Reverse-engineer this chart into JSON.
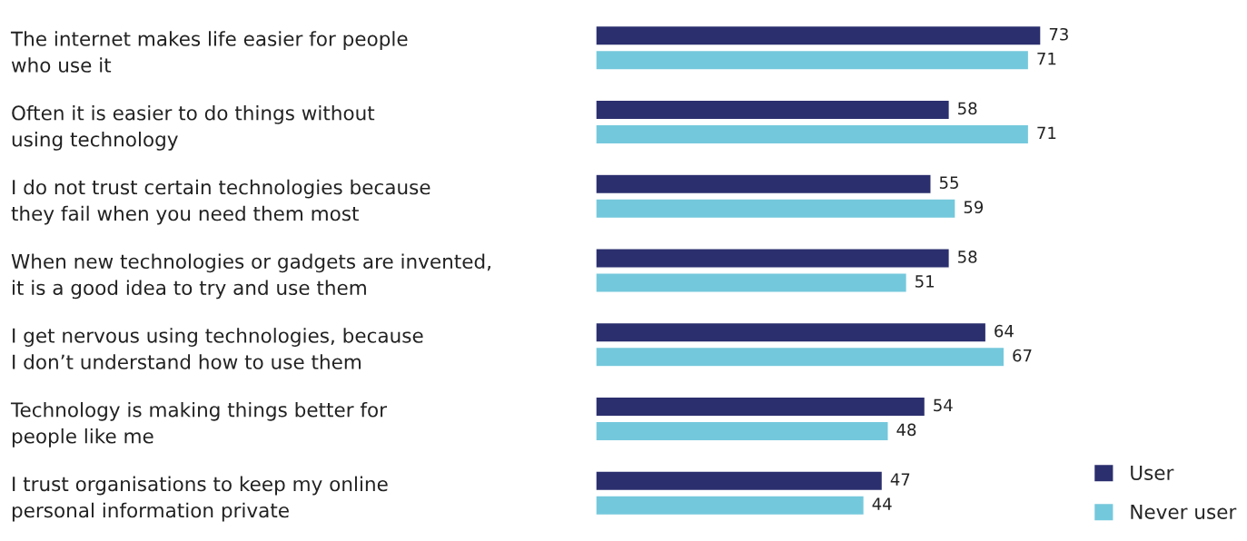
{
  "chart_data": {
    "type": "bar",
    "orientation": "horizontal",
    "categories": [
      "The internet makes life easier for people\nwho use it",
      "Often it is easier to do things without\nusing technology",
      "I do not trust certain technologies because\nthey fail when you need them most",
      "When new technologies or gadgets are invented,\nit is a good idea to try and use them",
      "I get nervous using technologies, because\nI don’t understand how to use them",
      "Technology is making things better for\npeople like me",
      "I trust organisations to keep my online\npersonal information private"
    ],
    "series": [
      {
        "name": "User",
        "color": "#2b2f6e",
        "values": [
          73,
          58,
          55,
          58,
          64,
          54,
          47
        ]
      },
      {
        "name": "Never user",
        "color": "#74c8dc",
        "values": [
          71,
          71,
          59,
          51,
          67,
          48,
          44
        ]
      }
    ],
    "data_labels": true,
    "legend": "bottom right",
    "grid": false
  }
}
